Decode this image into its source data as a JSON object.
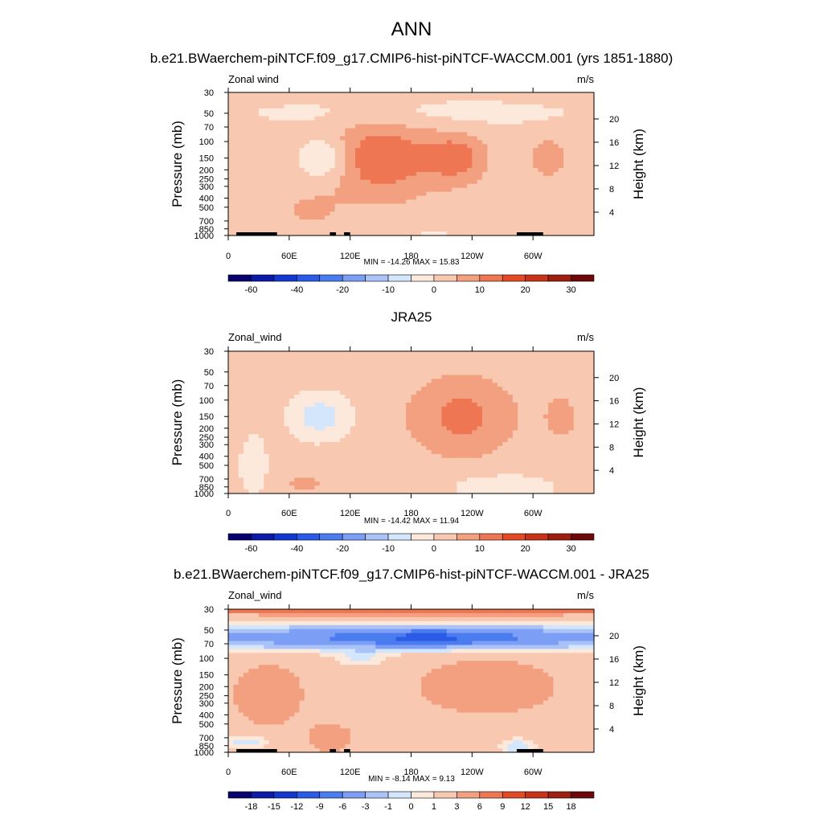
{
  "figure_title": "ANN",
  "colors": {
    "main_palette": [
      "#08006e",
      "#0c1aa8",
      "#1437cf",
      "#2a5ae6",
      "#4a7cf0",
      "#7d9ef5",
      "#a9c2f7",
      "#d3e6fb",
      "#fde9dc",
      "#f8c8b0",
      "#f3a081",
      "#ee7653",
      "#e24a26",
      "#c73319",
      "#9e1e10",
      "#6e0808"
    ],
    "diff_palette": [
      "#08006e",
      "#0c1aa8",
      "#1437cf",
      "#2a5ae6",
      "#4a7cf0",
      "#7d9ef5",
      "#a9c2f7",
      "#d3e6fb",
      "#fde9dc",
      "#f8c8b0",
      "#f3a081",
      "#ee7653",
      "#e24a26",
      "#c73319",
      "#9e1e10",
      "#6e0808"
    ],
    "topography": "#000000"
  },
  "chart_data": [
    {
      "type": "heatmap",
      "id": "model",
      "title": "b.e21.BWaerchem-piNTCF.f09_g17.CMIP6-hist-piNTCF-WACCM.001 (yrs 1851-1880)",
      "variable_label": "Zonal wind",
      "units": "m/s",
      "ylabel": "Pressure (mb)",
      "y2label": "Height (km)",
      "xticks": [
        "0",
        "60E",
        "120E",
        "180",
        "120W",
        "60W"
      ],
      "xtick_values": [
        0,
        60,
        120,
        180,
        240,
        300
      ],
      "xlim": [
        0,
        360
      ],
      "pressure_ticks": [
        30,
        50,
        70,
        100,
        150,
        200,
        250,
        300,
        400,
        500,
        700,
        850,
        1000
      ],
      "height_ticks": [
        4,
        8,
        12,
        16,
        20
      ],
      "ylim_mb": [
        1000,
        30
      ],
      "stats": "MIN = -14.26  MAX =  15.83",
      "min": -14.26,
      "max": 15.83,
      "colorbar_labels": [
        "-60",
        "-40",
        "-20",
        "-10",
        "0",
        "10",
        "20",
        "30"
      ],
      "colorbar_levels": [
        -70,
        -60,
        -50,
        -40,
        -30,
        -20,
        -15,
        -10,
        -5,
        0,
        5,
        10,
        15,
        20,
        25,
        30,
        35
      ],
      "background_value": 2,
      "features": [
        {
          "lon": 150,
          "p": 150,
          "lon_w": 75,
          "p_w": 0.7,
          "v": 12
        },
        {
          "lon": 224,
          "p": 150,
          "lon_w": 42,
          "p_w": 0.42,
          "v": 10
        },
        {
          "lon": 315,
          "p": 150,
          "lon_w": 22,
          "p_w": 0.34,
          "v": 7
        },
        {
          "lon": 95,
          "p": 150,
          "lon_w": 35,
          "p_w": 0.35,
          "v": -10
        },
        {
          "lon": 180,
          "p": 50,
          "lon_w": 260,
          "p_w": 0.28,
          "v": -4
        },
        {
          "lon": 80,
          "p": 550,
          "lon_w": 40,
          "p_w": 0.3,
          "v": 4
        },
        {
          "lon": 40,
          "p": 900,
          "lon_w": 25,
          "p_w": 0.1,
          "v": 3
        },
        {
          "lon": 200,
          "p": 950,
          "lon_w": 30,
          "p_w": 0.08,
          "v": -3
        }
      ],
      "topography": [
        [
          8,
          48
        ],
        [
          30,
          34
        ],
        [
          100,
          106
        ],
        [
          114,
          120
        ],
        [
          284,
          310
        ]
      ]
    },
    {
      "type": "heatmap",
      "id": "obs",
      "title": "JRA25",
      "variable_label": "Zonal_wind",
      "units": "m/s",
      "ylabel": "Pressure (mb)",
      "y2label": "Height (km)",
      "xticks": [
        "0",
        "60E",
        "120E",
        "180",
        "120W",
        "60W"
      ],
      "xtick_values": [
        0,
        60,
        120,
        180,
        240,
        300
      ],
      "xlim": [
        0,
        360
      ],
      "pressure_ticks": [
        30,
        50,
        70,
        100,
        150,
        200,
        250,
        300,
        400,
        500,
        700,
        850,
        1000
      ],
      "height_ticks": [
        4,
        8,
        12,
        16,
        20
      ],
      "ylim_mb": [
        1000,
        30
      ],
      "stats": "MIN = -14.42  MAX =  11.94",
      "min": -14.42,
      "max": 11.94,
      "colorbar_labels": [
        "-60",
        "-40",
        "-20",
        "-10",
        "0",
        "10",
        "20",
        "30"
      ],
      "colorbar_levels": [
        -70,
        -60,
        -50,
        -40,
        -30,
        -20,
        -15,
        -10,
        -5,
        0,
        5,
        10,
        15,
        20,
        25,
        30,
        35
      ],
      "background_value": 2,
      "features": [
        {
          "lon": 230,
          "p": 150,
          "lon_w": 75,
          "p_w": 0.7,
          "v": 9
        },
        {
          "lon": 230,
          "p": 150,
          "lon_w": 20,
          "p_w": 0.22,
          "v": 4
        },
        {
          "lon": 328,
          "p": 150,
          "lon_w": 22,
          "p_w": 0.34,
          "v": 6
        },
        {
          "lon": 90,
          "p": 150,
          "lon_w": 40,
          "p_w": 0.38,
          "v": -10
        },
        {
          "lon": 25,
          "p": 500,
          "lon_w": 18,
          "p_w": 0.5,
          "v": -6
        },
        {
          "lon": 270,
          "p": 850,
          "lon_w": 70,
          "p_w": 0.22,
          "v": -6
        },
        {
          "lon": 75,
          "p": 800,
          "lon_w": 35,
          "p_w": 0.2,
          "v": 4
        }
      ],
      "topography": []
    },
    {
      "type": "heatmap",
      "id": "diff",
      "title": "b.e21.BWaerchem-piNTCF.f09_g17.CMIP6-hist-piNTCF-WACCM.001 - JRA25",
      "variable_label": "Zonal_wind",
      "units": "m/s",
      "ylabel": "Pressure (mb)",
      "y2label": "Height (km)",
      "xticks": [
        "0",
        "60E",
        "120E",
        "180",
        "120W",
        "60W"
      ],
      "xtick_values": [
        0,
        60,
        120,
        180,
        240,
        300
      ],
      "xlim": [
        0,
        360
      ],
      "pressure_ticks": [
        30,
        50,
        70,
        100,
        150,
        200,
        250,
        300,
        400,
        500,
        700,
        850,
        1000
      ],
      "height_ticks": [
        4,
        8,
        12,
        16,
        20
      ],
      "ylim_mb": [
        1000,
        30
      ],
      "stats": "MIN =  -8.14  MAX =   9.13",
      "min": -8.14,
      "max": 9.13,
      "colorbar_labels": [
        "-18",
        "-15",
        "-12",
        "-9",
        "-6",
        "-3",
        "-1",
        "0",
        "1",
        "3",
        "6",
        "9",
        "12",
        "15",
        "18"
      ],
      "colorbar_levels": [
        -21,
        -18,
        -15,
        -12,
        -9,
        -6,
        -3,
        -1,
        0,
        1,
        3,
        6,
        9,
        12,
        15,
        18,
        21
      ],
      "background_value": 2,
      "features": [
        {
          "lon": 180,
          "p": 30,
          "lon_w": 400,
          "p_w": 0.08,
          "v": 8
        },
        {
          "lon": 180,
          "p": 60,
          "lon_w": 400,
          "p_w": 0.2,
          "v": -8
        },
        {
          "lon": 200,
          "p": 60,
          "lon_w": 110,
          "p_w": 0.15,
          "v": -4
        },
        {
          "lon": 255,
          "p": 200,
          "lon_w": 90,
          "p_w": 0.45,
          "v": 3
        },
        {
          "lon": 40,
          "p": 250,
          "lon_w": 45,
          "p_w": 0.5,
          "v": 3
        },
        {
          "lon": 130,
          "p": 100,
          "lon_w": 40,
          "p_w": 0.15,
          "v": -2
        },
        {
          "lon": 100,
          "p": 700,
          "lon_w": 25,
          "p_w": 0.2,
          "v": 4
        },
        {
          "lon": 20,
          "p": 780,
          "lon_w": 30,
          "p_w": 0.12,
          "v": -3
        },
        {
          "lon": 285,
          "p": 880,
          "lon_w": 25,
          "p_w": 0.15,
          "v": -3
        }
      ],
      "topography": [
        [
          8,
          48
        ],
        [
          30,
          34
        ],
        [
          100,
          106
        ],
        [
          114,
          120
        ],
        [
          284,
          310
        ]
      ]
    }
  ]
}
